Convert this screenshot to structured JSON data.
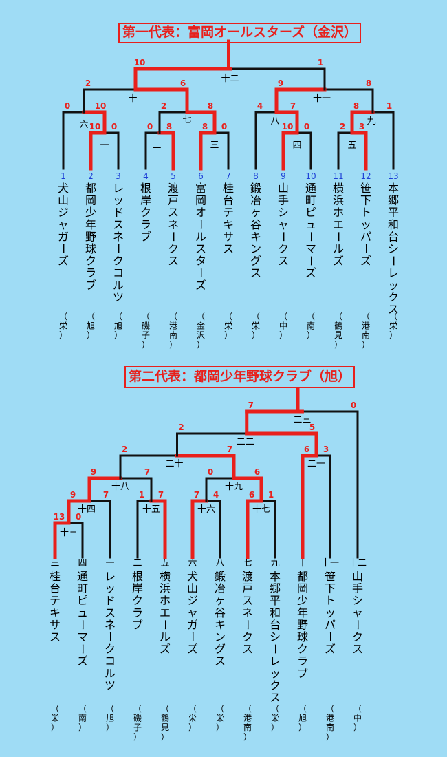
{
  "brackets": [
    {
      "title": "第一代表：富岡オールスターズ（金沢）",
      "teams": [
        {
          "seed": "1",
          "name": "犬山ジャガーズ",
          "region": "（栄）"
        },
        {
          "seed": "2",
          "name": "都岡少年野球クラブ",
          "region": "（旭）"
        },
        {
          "seed": "3",
          "name": "レッドスネークコルツ",
          "region": "（旭）"
        },
        {
          "seed": "4",
          "name": "根岸クラブ",
          "region": "（磯子）"
        },
        {
          "seed": "5",
          "name": "渡戸スネークス",
          "region": "（港南）"
        },
        {
          "seed": "6",
          "name": "富岡オールスターズ",
          "region": "（金沢）"
        },
        {
          "seed": "7",
          "name": "桂台テキサス",
          "region": "（栄）"
        },
        {
          "seed": "8",
          "name": "鍛冶ヶ谷キングス",
          "region": "（栄）"
        },
        {
          "seed": "9",
          "name": "山手シャークス",
          "region": "（中）"
        },
        {
          "seed": "10",
          "name": "通町ピューマーズ",
          "region": "（南）"
        },
        {
          "seed": "11",
          "name": "横浜ホエールズ",
          "region": "（鶴見）"
        },
        {
          "seed": "12",
          "name": "笹下トッパーズ",
          "region": "（港南）"
        },
        {
          "seed": "13",
          "name": "本郷平和台シーレックス",
          "region": "（栄）"
        }
      ],
      "games": [
        {
          "no": "一",
          "left_score": "10",
          "right_score": "0"
        },
        {
          "no": "二",
          "left_score": "0",
          "right_score": "8"
        },
        {
          "no": "三",
          "left_score": "8",
          "right_score": "0"
        },
        {
          "no": "四",
          "left_score": "10",
          "right_score": "0"
        },
        {
          "no": "五",
          "left_score": "2",
          "right_score": "3"
        },
        {
          "no": "六",
          "left_score": "0",
          "right_score": "10"
        },
        {
          "no": "七",
          "left_score": "2",
          "right_score": "8"
        },
        {
          "no": "八",
          "left_score": "4",
          "right_score": "7"
        },
        {
          "no": "九",
          "left_score": "8",
          "right_score": "1"
        },
        {
          "no": "十",
          "left_score": "2",
          "right_score": "6"
        },
        {
          "no": "十一",
          "left_score": "9",
          "right_score": "8"
        },
        {
          "no": "十二",
          "left_score": "10",
          "right_score": "1"
        }
      ]
    },
    {
      "title": "第二代表：都岡少年野球クラブ（旭）",
      "teams": [
        {
          "seed": "三",
          "name": "桂台テキサス",
          "region": "（栄）"
        },
        {
          "seed": "四",
          "name": "通町ピューマーズ",
          "region": "（南）"
        },
        {
          "seed": "一",
          "name": "レッドスネークコルツ",
          "region": "（旭）"
        },
        {
          "seed": "二",
          "name": "根岸クラブ",
          "region": "（磯子）"
        },
        {
          "seed": "五",
          "name": "横浜ホエールズ",
          "region": "（鶴見）"
        },
        {
          "seed": "六",
          "name": "犬山ジャガーズ",
          "region": "（栄）"
        },
        {
          "seed": "八",
          "name": "鍛冶ヶ谷キングス",
          "region": "（栄）"
        },
        {
          "seed": "七",
          "name": "渡戸スネークス",
          "region": "（港南）"
        },
        {
          "seed": "九",
          "name": "本郷平和台シーレックス",
          "region": "（栄）"
        },
        {
          "seed": "十",
          "name": "都岡少年野球クラブ",
          "region": "（旭）"
        },
        {
          "seed": "十一",
          "name": "笹下トッパーズ",
          "region": "（港南）"
        },
        {
          "seed": "十二",
          "name": "山手シャークス",
          "region": "（中）"
        }
      ],
      "games": [
        {
          "no": "十三",
          "left_score": "13",
          "right_score": "0"
        },
        {
          "no": "十四",
          "left_score": "9",
          "right_score": "7"
        },
        {
          "no": "十五",
          "left_score": "1",
          "right_score": "7"
        },
        {
          "no": "十六",
          "left_score": "7",
          "right_score": "4"
        },
        {
          "no": "十七",
          "left_score": "6",
          "right_score": "1"
        },
        {
          "no": "十八",
          "left_score": "9",
          "right_score": "7"
        },
        {
          "no": "十九",
          "left_score": "0",
          "right_score": "6"
        },
        {
          "no": "二十",
          "left_score": "2",
          "right_score": "7"
        },
        {
          "no": "二一",
          "left_score": "6",
          "right_score": "3"
        },
        {
          "no": "二二",
          "left_score": "2",
          "right_score": "5"
        },
        {
          "no": "二三",
          "left_score": "7",
          "right_score": "0"
        }
      ]
    }
  ],
  "colors": {
    "background": "#9fdcf5",
    "winner": "#e8201c",
    "line": "#111111",
    "seed_top": "#1d3fd6",
    "text": "#000000"
  }
}
